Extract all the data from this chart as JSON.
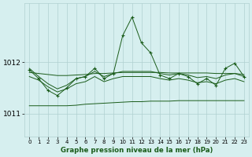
{
  "title": "Graphe pression niveau de la mer (hPa)",
  "background_color": "#d6efef",
  "grid_color": "#b0d0d0",
  "line_color": "#1a5c1a",
  "x_labels": [
    "0",
    "1",
    "2",
    "3",
    "4",
    "5",
    "6",
    "7",
    "8",
    "9",
    "10",
    "11",
    "12",
    "13",
    "14",
    "15",
    "16",
    "17",
    "18",
    "19",
    "20",
    "21",
    "22",
    "23"
  ],
  "ylim": [
    1010.55,
    1013.15
  ],
  "yticks": [
    1011,
    1012
  ],
  "main_y": [
    1011.85,
    1011.68,
    1011.45,
    1011.35,
    1011.5,
    1011.68,
    1011.72,
    1011.88,
    1011.68,
    1011.78,
    1012.52,
    1012.88,
    1012.38,
    1012.18,
    1011.75,
    1011.68,
    1011.78,
    1011.72,
    1011.58,
    1011.68,
    1011.55,
    1011.88,
    1011.98,
    1011.72
  ],
  "band_upper": [
    1011.88,
    1011.72,
    1011.58,
    1011.48,
    1011.55,
    1011.68,
    1011.72,
    1011.82,
    1011.72,
    1011.78,
    1011.82,
    1011.82,
    1011.82,
    1011.82,
    1011.78,
    1011.75,
    1011.78,
    1011.75,
    1011.7,
    1011.72,
    1011.68,
    1011.75,
    1011.78,
    1011.72
  ],
  "band_lower": [
    1011.72,
    1011.65,
    1011.52,
    1011.42,
    1011.48,
    1011.58,
    1011.62,
    1011.72,
    1011.62,
    1011.68,
    1011.72,
    1011.72,
    1011.72,
    1011.72,
    1011.68,
    1011.65,
    1011.68,
    1011.65,
    1011.6,
    1011.62,
    1011.58,
    1011.65,
    1011.68,
    1011.62
  ],
  "flat_top": [
    1011.8,
    1011.78,
    1011.76,
    1011.74,
    1011.74,
    1011.75,
    1011.76,
    1011.78,
    1011.78,
    1011.79,
    1011.8,
    1011.8,
    1011.8,
    1011.8,
    1011.8,
    1011.79,
    1011.79,
    1011.79,
    1011.79,
    1011.79,
    1011.78,
    1011.78,
    1011.78,
    1011.76
  ],
  "flat_bot": [
    1011.15,
    1011.15,
    1011.15,
    1011.15,
    1011.15,
    1011.16,
    1011.18,
    1011.19,
    1011.2,
    1011.21,
    1011.22,
    1011.23,
    1011.23,
    1011.24,
    1011.24,
    1011.24,
    1011.25,
    1011.25,
    1011.25,
    1011.25,
    1011.25,
    1011.25,
    1011.25,
    1011.25
  ]
}
